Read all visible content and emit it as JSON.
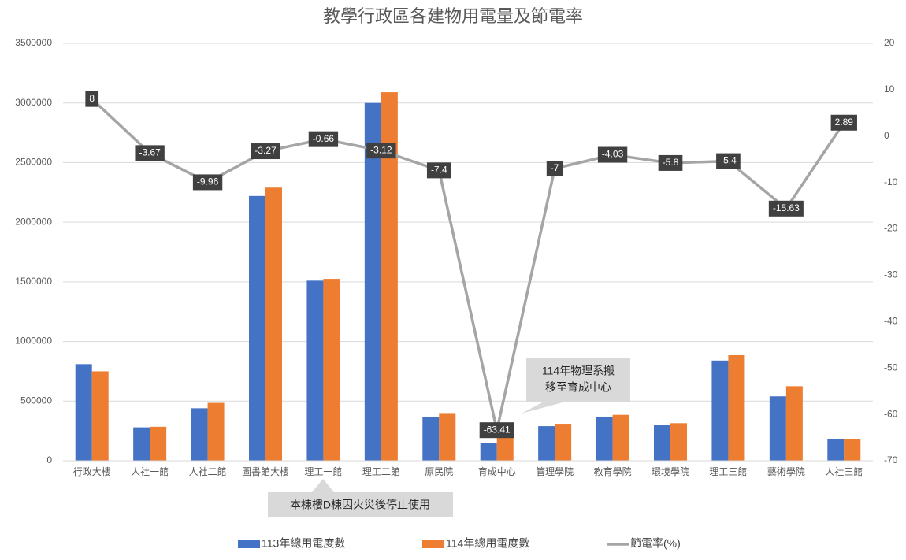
{
  "chart_data": {
    "type": "combo",
    "title": "教學行政區各建物用電量及節電率",
    "categories": [
      "行政大樓",
      "人社一館",
      "人社二館",
      "圖書館大樓",
      "理工一館",
      "理工二館",
      "原民院",
      "育成中心",
      "管理學院",
      "教育學院",
      "環境學院",
      "理工三館",
      "藝術學院",
      "人社三館"
    ],
    "series": [
      {
        "name": "113年總用電度數",
        "type": "bar",
        "color": "#4472c4",
        "values": [
          810000,
          280000,
          440000,
          2220000,
          1510000,
          3000000,
          370000,
          150000,
          290000,
          370000,
          300000,
          840000,
          540000,
          185000
        ]
      },
      {
        "name": "114年總用電度數",
        "type": "bar",
        "color": "#ed7d31",
        "values": [
          750000,
          285000,
          485000,
          2290000,
          1525000,
          3090000,
          400000,
          245000,
          310000,
          385000,
          315000,
          885000,
          625000,
          180000
        ]
      },
      {
        "name": "節電率(%)",
        "type": "line",
        "axis": "y2",
        "color": "#a5a5a5",
        "values": [
          8,
          -3.67,
          -9.96,
          -3.27,
          -0.66,
          -3.12,
          -7.4,
          -63.41,
          -7,
          -4.03,
          -5.8,
          -5.4,
          -15.63,
          2.89
        ]
      }
    ],
    "ylim": [
      0,
      3500000
    ],
    "yticks": [
      0,
      500000,
      1000000,
      1500000,
      2000000,
      2500000,
      3000000,
      3500000
    ],
    "y2lim": [
      -70,
      20
    ],
    "y2ticks": [
      -70,
      -60,
      -50,
      -40,
      -30,
      -20,
      -10,
      0,
      10,
      20
    ],
    "grid": true,
    "legend": "bottom",
    "annotations": [
      [
        "114年物理系搬",
        "移至育成中心"
      ],
      [
        "本棟樓D棟因火災後停止使用"
      ]
    ]
  }
}
